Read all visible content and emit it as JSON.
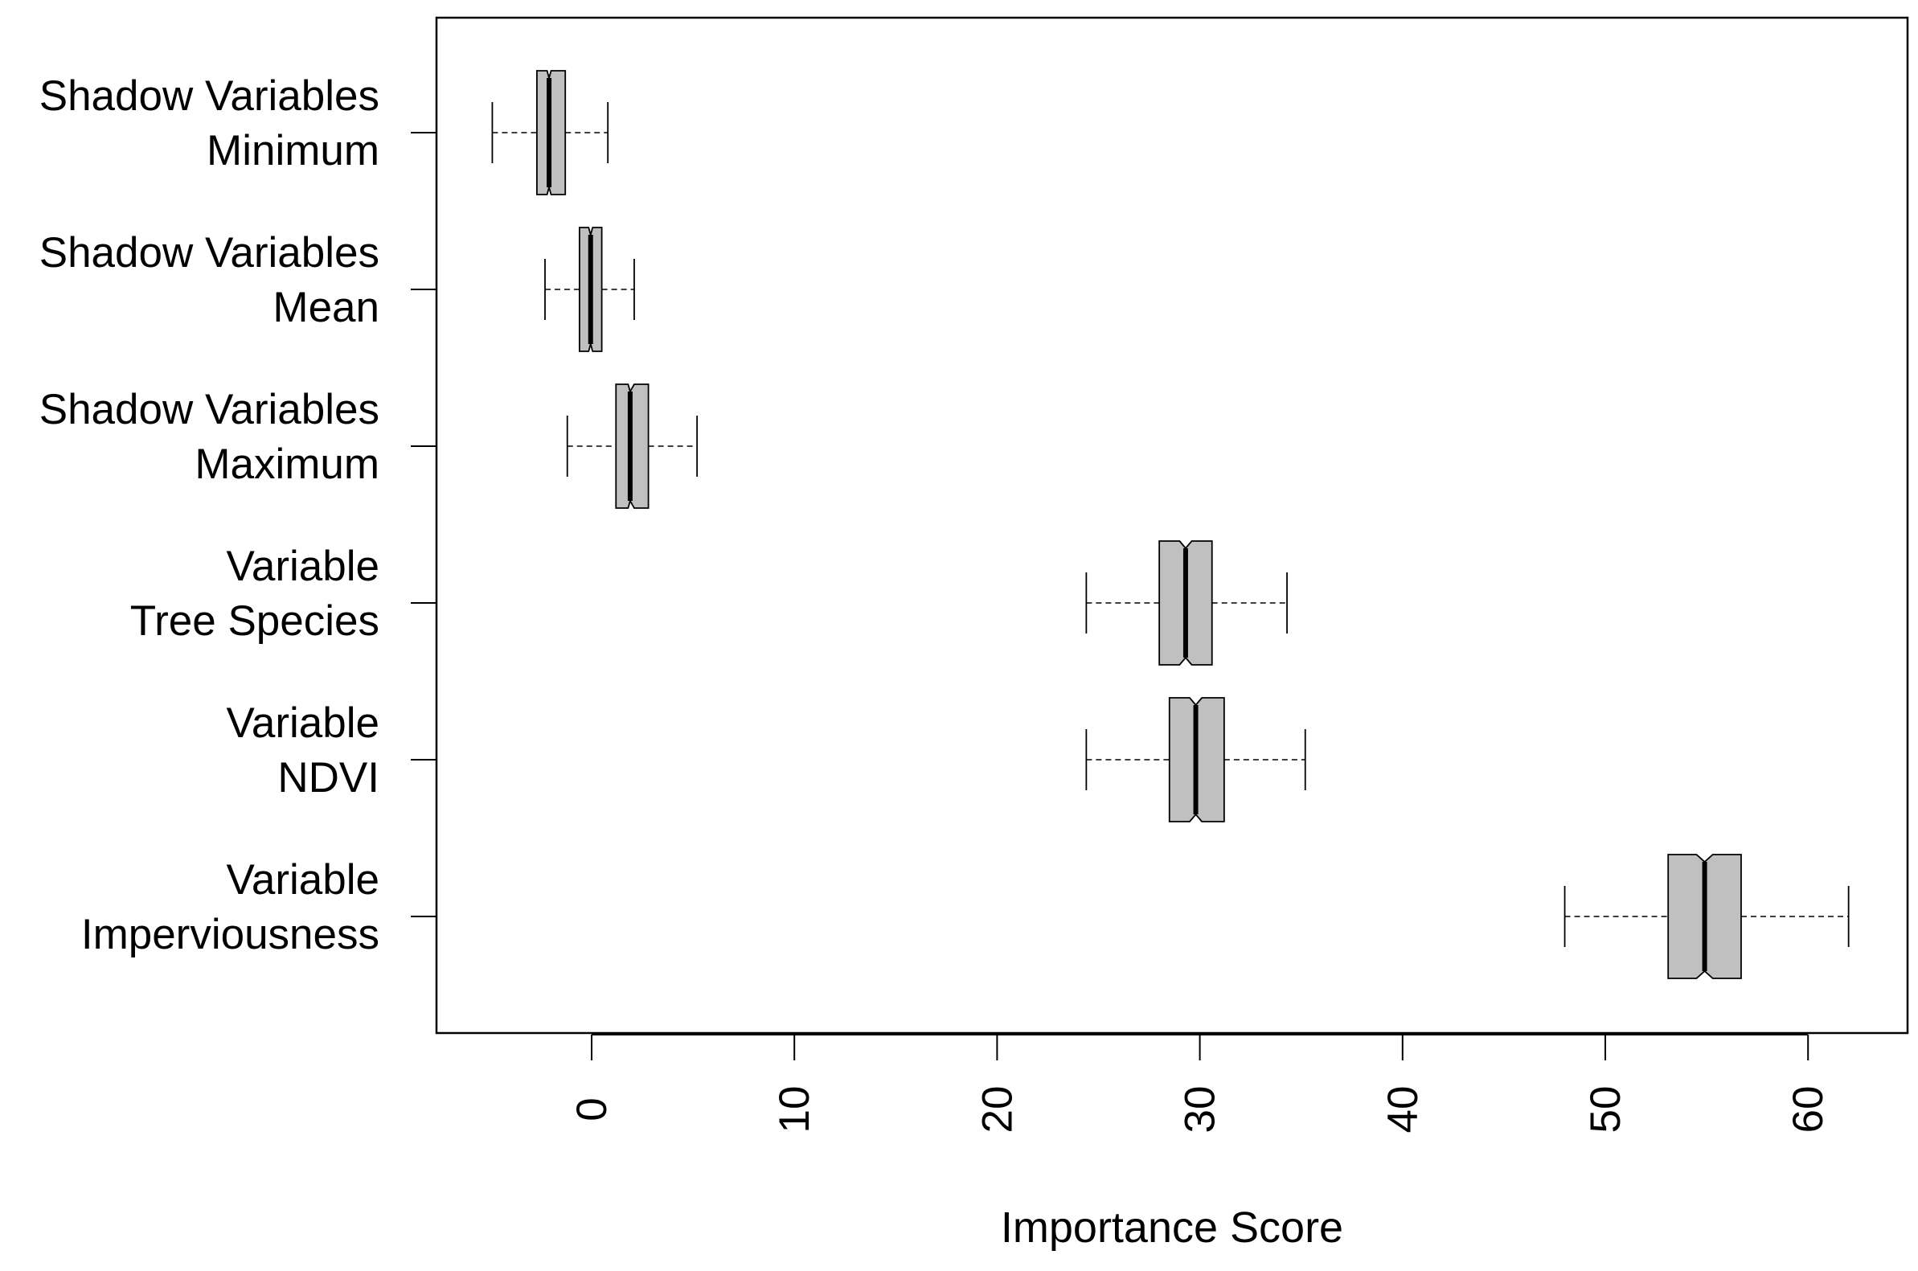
{
  "chart_data": {
    "type": "boxplot",
    "orientation": "horizontal",
    "title": "",
    "xlabel": "Importance Score",
    "ylabel": "",
    "xlim": [
      -7.6,
      65
    ],
    "xticks": [
      0,
      10,
      20,
      30,
      40,
      50,
      60
    ],
    "xtick_labels": [
      "0",
      "10",
      "20",
      "30",
      "40",
      "50",
      "60"
    ],
    "notched": true,
    "box_color": "#c0c0c0",
    "series": [
      {
        "name": "Shadow Variables Minimum",
        "label_lines": [
          "Shadow Variables",
          "Minimum"
        ],
        "whisker_low": -4.9,
        "q1": -2.7,
        "median": -2.1,
        "q3": -1.3,
        "whisker_high": 0.8,
        "notch_low": -2.2,
        "notch_high": -2.0
      },
      {
        "name": "Shadow Variables Mean",
        "label_lines": [
          "Shadow Variables",
          "Mean"
        ],
        "whisker_low": -2.3,
        "q1": -0.6,
        "median": -0.05,
        "q3": 0.5,
        "whisker_high": 2.1,
        "notch_low": -0.15,
        "notch_high": 0.05
      },
      {
        "name": "Shadow Variables Maximum",
        "label_lines": [
          "Shadow Variables",
          "Maximum"
        ],
        "whisker_low": -1.2,
        "q1": 1.2,
        "median": 1.9,
        "q3": 2.8,
        "whisker_high": 5.2,
        "notch_low": 1.8,
        "notch_high": 2.1
      },
      {
        "name": "Variable Tree Species",
        "label_lines": [
          "Variable",
          "Tree Species"
        ],
        "whisker_low": 24.4,
        "q1": 28.0,
        "median": 29.3,
        "q3": 30.6,
        "whisker_high": 34.3,
        "notch_low": 29.0,
        "notch_high": 29.6
      },
      {
        "name": "Variable NDVI",
        "label_lines": [
          "Variable",
          "NDVI"
        ],
        "whisker_low": 24.4,
        "q1": 28.5,
        "median": 29.8,
        "q3": 31.2,
        "whisker_high": 35.2,
        "notch_low": 29.5,
        "notch_high": 30.1
      },
      {
        "name": "Variable Imperviousness",
        "label_lines": [
          "Variable",
          "Imperviousness"
        ],
        "whisker_low": 48.0,
        "q1": 53.1,
        "median": 54.9,
        "q3": 56.7,
        "whisker_high": 62.0,
        "notch_low": 54.5,
        "notch_high": 55.3
      }
    ]
  }
}
